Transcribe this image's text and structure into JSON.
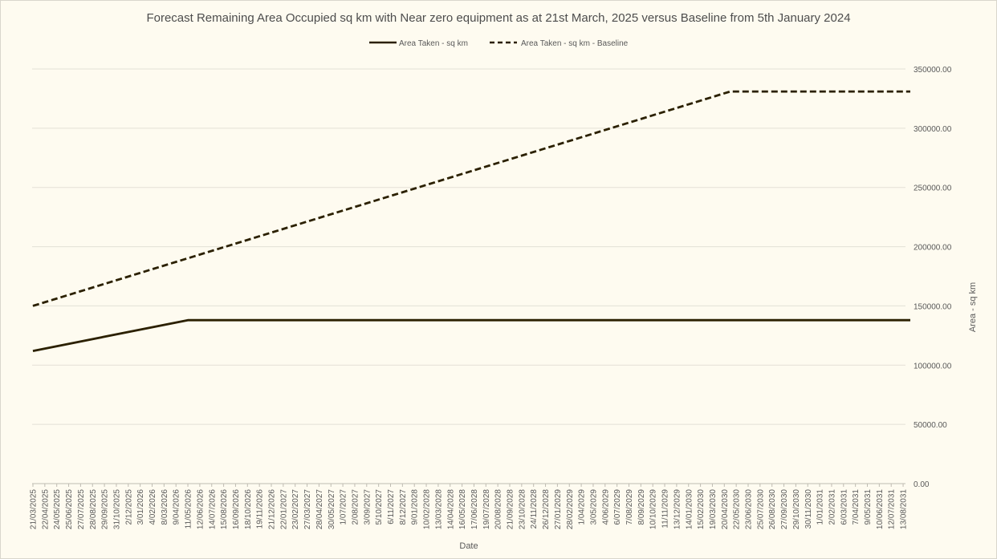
{
  "chart_data": {
    "type": "line",
    "title": "Forecast Remaining Area Occupied sq km with Near zero equipment as at 21st March, 2025 versus Baseline from 5th January 2024",
    "xlabel": "Date",
    "ylabel": "Area - sq km",
    "ylim": [
      0,
      350000
    ],
    "y_ticks": [
      "0.00",
      "50000.00",
      "100000.00",
      "150000.00",
      "200000.00",
      "250000.00",
      "300000.00",
      "350000.00"
    ],
    "y_axis_side": "right",
    "grid": true,
    "legend_position": "top",
    "categories": [
      "21/03/2025",
      "22/04/2025",
      "24/05/2025",
      "25/06/2025",
      "27/07/2025",
      "28/08/2025",
      "29/09/2025",
      "31/10/2025",
      "2/12/2025",
      "3/01/2026",
      "4/02/2026",
      "8/03/2026",
      "9/04/2026",
      "11/05/2026",
      "12/06/2026",
      "14/07/2026",
      "15/08/2026",
      "16/09/2026",
      "18/10/2026",
      "19/11/2026",
      "21/12/2026",
      "22/01/2027",
      "23/02/2027",
      "27/03/2027",
      "28/04/2027",
      "30/05/2027",
      "1/07/2027",
      "2/08/2027",
      "3/09/2027",
      "5/10/2027",
      "6/11/2027",
      "8/12/2027",
      "9/01/2028",
      "10/02/2028",
      "13/03/2028",
      "14/04/2028",
      "16/05/2028",
      "17/06/2028",
      "19/07/2028",
      "20/08/2028",
      "21/09/2028",
      "23/10/2028",
      "24/11/2028",
      "26/12/2028",
      "27/01/2029",
      "28/02/2029",
      "1/04/2029",
      "3/05/2029",
      "4/06/2029",
      "6/07/2029",
      "7/08/2029",
      "8/09/2029",
      "10/10/2029",
      "11/11/2029",
      "13/12/2029",
      "14/01/2030",
      "15/02/2030",
      "19/03/2030",
      "20/04/2030",
      "22/05/2030",
      "23/06/2030",
      "25/07/2030",
      "26/08/2030",
      "27/09/2030",
      "29/10/2030",
      "30/11/2030",
      "1/01/2031",
      "2/02/2031",
      "6/03/2031",
      "7/04/2031",
      "9/05/2031",
      "10/06/2031",
      "12/07/2031",
      "13/08/2031"
    ],
    "series": [
      {
        "name": "Area Taken - sq km",
        "style": "solid",
        "color": "#2b2000",
        "keypoints": [
          {
            "index": 0,
            "value": 112000
          },
          {
            "index": 13,
            "value": 138000
          },
          {
            "index": 73.6,
            "value": 138000
          }
        ]
      },
      {
        "name": "Area Taken - sq km - Baseline",
        "style": "dashed",
        "color": "#2b2000",
        "keypoints": [
          {
            "index": 0,
            "value": 150000
          },
          {
            "index": 58.5,
            "value": 331000
          },
          {
            "index": 73.6,
            "value": 331000
          }
        ]
      }
    ]
  }
}
